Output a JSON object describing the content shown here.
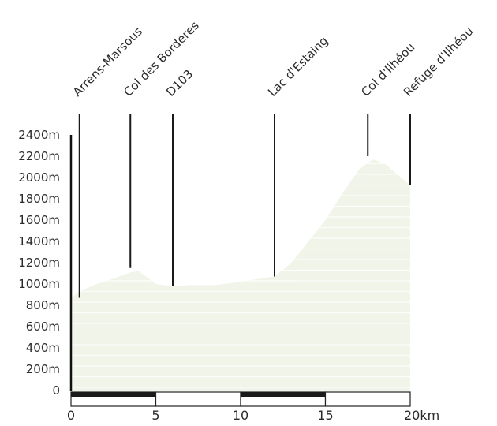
{
  "chart_data": {
    "type": "area",
    "title": "",
    "xlabel": "",
    "ylabel": "",
    "xlim": [
      0,
      20
    ],
    "ylim": [
      0,
      2400
    ],
    "x_unit": "km",
    "y_unit": "m",
    "grid": false,
    "fill_color": "#f1f4e8",
    "stripe_color": "#ffffff",
    "axis_color": "#111111",
    "x_ticks": [
      {
        "value": 0,
        "label": "0"
      },
      {
        "value": 5,
        "label": "5"
      },
      {
        "value": 10,
        "label": "10"
      },
      {
        "value": 15,
        "label": "15"
      },
      {
        "value": 20,
        "label": "20km"
      }
    ],
    "y_ticks": [
      {
        "value": 0,
        "label": "0"
      },
      {
        "value": 200,
        "label": "200m"
      },
      {
        "value": 400,
        "label": "400m"
      },
      {
        "value": 600,
        "label": "600m"
      },
      {
        "value": 800,
        "label": "800m"
      },
      {
        "value": 1000,
        "label": "1000m"
      },
      {
        "value": 1200,
        "label": "1200m"
      },
      {
        "value": 1400,
        "label": "1400m"
      },
      {
        "value": 1600,
        "label": "1600m"
      },
      {
        "value": 1800,
        "label": "1800m"
      },
      {
        "value": 2000,
        "label": "2000m"
      },
      {
        "value": 2200,
        "label": "2200m"
      },
      {
        "value": 2400,
        "label": "2400m"
      }
    ],
    "profile": [
      {
        "x": 0.0,
        "y": 870
      },
      {
        "x": 0.5,
        "y": 930
      },
      {
        "x": 1.5,
        "y": 1000
      },
      {
        "x": 2.5,
        "y": 1050
      },
      {
        "x": 3.5,
        "y": 1110
      },
      {
        "x": 4.0,
        "y": 1120
      },
      {
        "x": 4.5,
        "y": 1060
      },
      {
        "x": 5.0,
        "y": 1000
      },
      {
        "x": 6.0,
        "y": 980
      },
      {
        "x": 7.0,
        "y": 990
      },
      {
        "x": 8.5,
        "y": 990
      },
      {
        "x": 10.0,
        "y": 1020
      },
      {
        "x": 11.5,
        "y": 1060
      },
      {
        "x": 12.0,
        "y": 1070
      },
      {
        "x": 13.0,
        "y": 1200
      },
      {
        "x": 14.0,
        "y": 1400
      },
      {
        "x": 15.0,
        "y": 1600
      },
      {
        "x": 16.0,
        "y": 1850
      },
      {
        "x": 17.0,
        "y": 2080
      },
      {
        "x": 17.8,
        "y": 2170
      },
      {
        "x": 18.5,
        "y": 2130
      },
      {
        "x": 19.3,
        "y": 2020
      },
      {
        "x": 20.0,
        "y": 1930
      }
    ],
    "waypoints": [
      {
        "name": "Arrens-Marsous",
        "x": 0.5,
        "elevation": 870
      },
      {
        "name": "Col des Bordères",
        "x": 3.5,
        "elevation": 1150
      },
      {
        "name": "D103",
        "x": 6.0,
        "elevation": 980
      },
      {
        "name": "Lac d'Estaing",
        "x": 12.0,
        "elevation": 1070
      },
      {
        "name": "Col d'Ilhéou",
        "x": 17.5,
        "elevation": 2200
      },
      {
        "name": "Refuge d'Ilhéou",
        "x": 20.0,
        "elevation": 1930
      }
    ]
  }
}
